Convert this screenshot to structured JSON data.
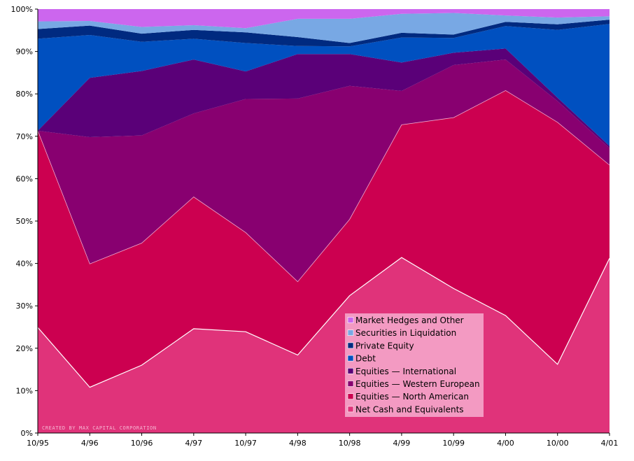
{
  "chart_data": {
    "type": "area",
    "stacked": true,
    "x": [
      "10/95",
      "4/96",
      "10/96",
      "4/97",
      "10/97",
      "4/98",
      "10/98",
      "4/99",
      "10/99",
      "4/00",
      "10/00",
      "4/01"
    ],
    "ylim": [
      0,
      100
    ],
    "y_ticks": [
      "0%",
      "10%",
      "20%",
      "30%",
      "40%",
      "50%",
      "60%",
      "70%",
      "80%",
      "90%",
      "100%"
    ],
    "watermark": "CREATED BY MAX CAPITAL CORPORATION",
    "legend_position": "lower-center-right",
    "series": [
      {
        "name": "Net Cash and Equivalents",
        "color": "#e0337a",
        "values": [
          24.9,
          10.8,
          16.0,
          24.6,
          23.9,
          18.4,
          32.4,
          41.4,
          34.1,
          27.7,
          16.2,
          41.2
        ]
      },
      {
        "name": "Equities — North American",
        "color": "#cc0050",
        "values": [
          46.4,
          29.1,
          28.8,
          31.1,
          23.4,
          17.3,
          18.0,
          31.3,
          40.3,
          53.1,
          57.1,
          22.0
        ]
      },
      {
        "name": "Equities — Western European",
        "color": "#880070",
        "values": [
          0.0,
          29.9,
          25.4,
          19.7,
          31.5,
          43.2,
          31.5,
          8.0,
          12.4,
          7.3,
          5.0,
          4.0
        ]
      },
      {
        "name": "Equities — International",
        "color": "#5a0078",
        "values": [
          0.0,
          14.0,
          15.2,
          12.7,
          6.5,
          10.5,
          7.5,
          6.7,
          2.9,
          2.6,
          0.8,
          0.5
        ]
      },
      {
        "name": "Debt",
        "color": "#0050c0",
        "values": [
          21.7,
          10.1,
          6.9,
          4.9,
          6.7,
          1.9,
          1.8,
          5.9,
          3.5,
          5.3,
          16.0,
          28.8
        ]
      },
      {
        "name": "Private Equity",
        "color": "#002a80",
        "values": [
          2.3,
          2.2,
          1.9,
          2.1,
          2.5,
          2.1,
          0.8,
          1.1,
          0.8,
          1.0,
          1.3,
          1.0
        ]
      },
      {
        "name": "Securities in Liquidation",
        "color": "#78a8e4",
        "values": [
          1.8,
          1.1,
          1.6,
          1.1,
          1.0,
          4.3,
          5.7,
          4.5,
          5.1,
          1.5,
          1.6,
          0.8
        ]
      },
      {
        "name": "Market Hedges and Other",
        "color": "#cc66ee",
        "values": [
          2.9,
          2.8,
          4.2,
          3.8,
          4.5,
          2.3,
          2.3,
          1.1,
          0.9,
          1.5,
          2.0,
          1.7
        ]
      }
    ]
  }
}
